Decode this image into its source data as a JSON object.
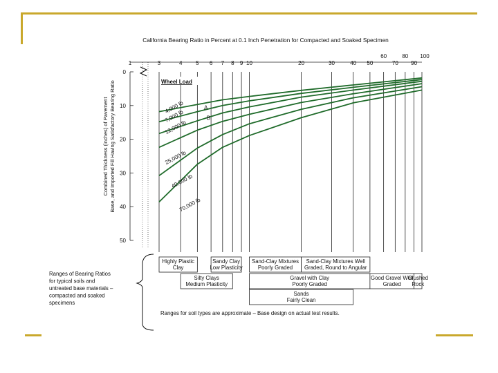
{
  "chart_data": {
    "type": "line",
    "title": "California Bearing Ratio in Percent at 0.1 Inch Penetration for Compacted and Soaked Specimen",
    "ylabel": [
      "Combined Thickness (inches) of Pavement",
      "Base, and Imported Fill Having Satisfactory Bearing Ratio"
    ],
    "x_scale": "log",
    "xlim": [
      1,
      100
    ],
    "ylim": [
      0,
      50
    ],
    "x_ticks_main": [
      {
        "value": 1,
        "label": "1"
      },
      {
        "value": 3,
        "label": "3"
      },
      {
        "value": 4,
        "label": "4"
      },
      {
        "value": 5,
        "label": "5"
      },
      {
        "value": 6,
        "label": "6"
      },
      {
        "value": 7,
        "label": "7"
      },
      {
        "value": 8,
        "label": "8"
      },
      {
        "value": 9,
        "label": "9"
      },
      {
        "value": 10,
        "label": "10"
      },
      {
        "value": 20,
        "label": "20"
      },
      {
        "value": 30,
        "label": "30"
      },
      {
        "value": 40,
        "label": "40"
      },
      {
        "value": 50,
        "label": "50"
      },
      {
        "value": 70,
        "label": "70"
      },
      {
        "value": 90,
        "label": "90"
      }
    ],
    "x_ticks_upper": [
      {
        "value": 60,
        "label": "60"
      },
      {
        "value": 80,
        "label": "80"
      },
      {
        "value": 100,
        "label": "100"
      }
    ],
    "y_ticks": [
      0,
      10,
      20,
      30,
      40,
      50
    ],
    "legend_title": "Wheel Load",
    "series": [
      {
        "name": "4,000 lb",
        "x": [
          3,
          5,
          7,
          10,
          20,
          40,
          100
        ],
        "y": [
          11.8,
          9.7,
          8.3,
          7.3,
          5.5,
          3.9,
          1.8
        ]
      },
      {
        "name": "7,000 lb",
        "x": [
          3,
          5,
          7,
          10,
          20,
          40,
          100
        ],
        "y": [
          14.8,
          11.8,
          10.0,
          8.6,
          6.4,
          4.6,
          2.3
        ]
      },
      {
        "name": "12,000 lb",
        "x": [
          3,
          5,
          7,
          10,
          20,
          40,
          100
        ],
        "y": [
          18.3,
          14.5,
          12.2,
          10.4,
          7.5,
          5.4,
          2.8
        ]
      },
      {
        "name": "25,000 lb",
        "x": [
          3,
          5,
          7,
          10,
          20,
          40,
          100
        ],
        "y": [
          22.4,
          17.3,
          14.7,
          12.6,
          9.1,
          6.5,
          3.5
        ]
      },
      {
        "name": "40,000 lb",
        "x": [
          3,
          5,
          7,
          10,
          20,
          40,
          100
        ],
        "y": [
          30.8,
          22.6,
          18.6,
          15.4,
          11.1,
          7.7,
          4.4
        ]
      },
      {
        "name": "70,000 lb",
        "x": [
          3,
          5,
          7,
          10,
          20,
          40,
          100
        ],
        "y": [
          38.6,
          27.4,
          22.4,
          18.9,
          13.6,
          9.2,
          5.4
        ]
      }
    ],
    "load_labels": [
      {
        "text": "4,000 lb",
        "x": 3.3,
        "y": 12.3
      },
      {
        "text": "7,000 lb",
        "x": 3.3,
        "y": 15.0
      },
      {
        "text": "12,000 lb",
        "x": 3.3,
        "y": 18.5
      },
      {
        "text": "25,000 lb",
        "x": 3.3,
        "y": 27.5
      },
      {
        "text": "40,000 lb",
        "x": 3.6,
        "y": 34.5
      },
      {
        "text": "70,000 lb",
        "x": 4.0,
        "y": 41.5
      }
    ],
    "curve_markers": [
      {
        "text": "A",
        "x": 5.6,
        "y": 11.2
      },
      {
        "text": "B",
        "x": 5.8,
        "y": 14.2
      }
    ],
    "soil_ranges": [
      {
        "lines": [
          "Highly Plastic",
          "Clay"
        ],
        "from": 3,
        "to": 5,
        "row": 1
      },
      {
        "lines": [
          "Sandy Clay",
          "Low Plasticity"
        ],
        "from": 6,
        "to": 9,
        "row": 1
      },
      {
        "lines": [
          "Sand-Clay Mixtures",
          "Poorly Graded"
        ],
        "from": 10,
        "to": 20,
        "row": 1
      },
      {
        "lines": [
          "Sand-Clay Mixtures Well",
          "Graded, Round to Angular"
        ],
        "from": 20,
        "to": 50,
        "row": 1
      },
      {
        "lines": [
          "Silty Clays",
          "Medium Plasticity"
        ],
        "from": 4,
        "to": 8,
        "row": 2
      },
      {
        "lines": [
          "Gravel with Clay",
          "Poorly Graded"
        ],
        "from": 10,
        "to": 50,
        "row": 2
      },
      {
        "lines": [
          "Good Gravel Well",
          "Graded"
        ],
        "from": 50,
        "to": 90,
        "row": 2
      },
      {
        "lines": [
          "Crushed",
          "Rock"
        ],
        "from": 90,
        "to": 100,
        "row": 2
      },
      {
        "lines": [
          "Sands",
          "Fairly Clean"
        ],
        "from": 10,
        "to": 40,
        "row": 3
      }
    ],
    "ranges_label": [
      "Ranges of Bearing Ratios",
      "for typical soils and",
      "untreated base materials –",
      "compacted and soaked",
      "specimens"
    ],
    "footnote": "Ranges for soil types are approximate – Base design on actual test results."
  }
}
